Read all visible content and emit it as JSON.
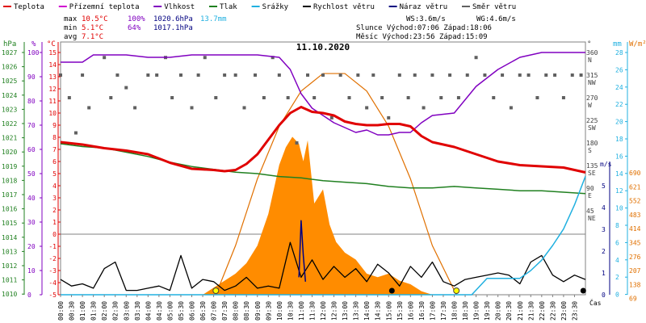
{
  "chart_data": {
    "type": "line",
    "title": "11.10.2020",
    "legend": [
      {
        "label": "Teplota",
        "color": "#e00000"
      },
      {
        "label": "Přízemní teplota",
        "color": "#d000d0"
      },
      {
        "label": "Vlhkost",
        "color": "#8000c0"
      },
      {
        "label": "Tlak",
        "color": "#208020"
      },
      {
        "label": "Srážky",
        "color": "#20b0e0"
      },
      {
        "label": "Rychlost větru",
        "color": "#000000"
      },
      {
        "label": "Náraz větru",
        "color": "#000080"
      },
      {
        "label": "Směr větru",
        "color": "#606060"
      }
    ],
    "stats": {
      "rows": [
        {
          "label": "max",
          "temp": "10.5°C",
          "hum": "100%",
          "press": "1020.6hPa",
          "rain": "13.7mm"
        },
        {
          "label": "min",
          "temp": "5.1°C",
          "hum": "64%",
          "press": "1017.1hPa",
          "rain": ""
        },
        {
          "label": "avg",
          "temp": "7.1°C",
          "hum": "",
          "press": "",
          "rain": ""
        }
      ],
      "ws": "WS:3.6m/s",
      "wg": "WG:4.6m/s",
      "sun": "Slunce Východ:07:06  Západ:18:06",
      "moon": "Měsíc  Východ:23:56  Západ:15:09"
    },
    "axes": {
      "hpa": {
        "label": "hPa",
        "ticks": [
          "1027",
          "1026",
          "1025",
          "1024",
          "1023",
          "1022",
          "1021",
          "1020",
          "1019",
          "1018",
          "1017",
          "1016",
          "1015",
          "1014",
          "1013",
          "1012",
          "1011",
          "1010"
        ]
      },
      "pct": {
        "label": "%",
        "ticks": [
          "100",
          "90",
          "80",
          "70",
          "60",
          "50",
          "40",
          "30",
          "20",
          "10",
          "0"
        ]
      },
      "degc": {
        "label": "°C",
        "ticks": [
          "15",
          "14",
          "13",
          "12",
          "11",
          "10",
          "9",
          "8",
          "7",
          "6",
          "5",
          "4",
          "3",
          "2",
          "1",
          "0",
          "-1",
          "-2",
          "-3",
          "-4",
          "-5"
        ]
      },
      "dir": {
        "label": "°",
        "ticks": [
          "360",
          "315",
          "270",
          "225",
          "180",
          "135",
          "90",
          "45"
        ],
        "names": [
          "N",
          "NW",
          "W",
          "SW",
          "S",
          "SE",
          "E",
          "NE"
        ]
      },
      "ms": {
        "label": "m/s",
        "ticks": [
          "5",
          "4",
          "3",
          "2",
          "1",
          "0"
        ]
      },
      "mm": {
        "label": "mm",
        "ticks": [
          "28",
          "26",
          "24",
          "22",
          "20",
          "18",
          "16",
          "14",
          "12",
          "10",
          "8",
          "6",
          "4",
          "2",
          "0"
        ]
      },
      "wm2": {
        "label": "W/m²",
        "ticks": [
          "690",
          "621",
          "552",
          "483",
          "414",
          "345",
          "276",
          "207",
          "138",
          "69"
        ]
      },
      "x_label": "Čas",
      "x_ticks": [
        "00:00",
        "00:30",
        "01:00",
        "01:30",
        "02:00",
        "02:30",
        "03:00",
        "03:30",
        "04:00",
        "04:30",
        "05:00",
        "05:30",
        "06:00",
        "06:30",
        "07:00",
        "07:30",
        "08:00",
        "08:30",
        "09:00",
        "09:30",
        "10:00",
        "10:30",
        "11:00",
        "11:30",
        "12:00",
        "12:30",
        "13:00",
        "13:30",
        "14:00",
        "14:30",
        "15:00",
        "15:30",
        "16:00",
        "16:30",
        "17:00",
        "17:30",
        "18:00",
        "18:30",
        "19:00",
        "19:30",
        "20:00",
        "20:30",
        "21:00",
        "21:30",
        "22:00",
        "22:30",
        "23:00",
        "23:30"
      ]
    },
    "series": {
      "temperature": {
        "unit": "°C",
        "x": [
          0,
          1,
          2,
          3,
          4,
          5,
          6,
          7,
          7.5,
          8,
          8.5,
          9,
          9.5,
          10,
          10.5,
          11,
          11.5,
          12,
          12.5,
          13,
          13.5,
          14,
          14.5,
          15,
          15.5,
          16,
          16.5,
          17,
          17.5,
          18,
          19,
          20,
          21,
          22,
          23,
          24
        ],
        "y": [
          7.6,
          7.4,
          7.1,
          6.9,
          6.6,
          5.9,
          5.4,
          5.3,
          5.2,
          5.3,
          5.8,
          6.6,
          7.8,
          9.0,
          10.0,
          10.5,
          10.1,
          10.0,
          9.8,
          9.3,
          9.1,
          9.0,
          9.0,
          9.1,
          9.1,
          8.9,
          8.1,
          7.6,
          7.4,
          7.2,
          6.6,
          6.0,
          5.7,
          5.6,
          5.5,
          5.1
        ]
      },
      "humidity": {
        "unit": "%",
        "x": [
          0,
          1,
          1.5,
          2,
          3,
          4,
          5,
          6,
          7,
          8,
          9,
          10,
          10.5,
          11,
          11.5,
          12,
          12.5,
          13,
          13.5,
          14,
          14.5,
          15,
          15.5,
          16,
          16.5,
          17,
          18,
          19,
          20,
          21,
          22,
          23,
          24
        ],
        "y": [
          96,
          96,
          99,
          99,
          99,
          98,
          98,
          99,
          99,
          99,
          99,
          98,
          93,
          83,
          77,
          74,
          71,
          69,
          67,
          68,
          66,
          66,
          67,
          67,
          71,
          74,
          75,
          86,
          93,
          98,
          100,
          100,
          100
        ]
      },
      "pressure": {
        "unit": "hPa",
        "x": [
          0,
          1,
          2,
          3,
          4,
          5,
          6,
          7,
          8,
          9,
          10,
          11,
          12,
          13,
          14,
          15,
          16,
          17,
          18,
          19,
          20,
          21,
          22,
          23,
          24
        ],
        "y": [
          1020.6,
          1020.4,
          1020.3,
          1020.0,
          1019.7,
          1019.3,
          1019.0,
          1018.8,
          1018.6,
          1018.5,
          1018.3,
          1018.2,
          1018.0,
          1017.9,
          1017.8,
          1017.6,
          1017.5,
          1017.5,
          1017.6,
          1017.5,
          1017.4,
          1017.3,
          1017.3,
          1017.2,
          1017.1
        ]
      },
      "rain": {
        "unit": "mm",
        "x": [
          0,
          18.8,
          19.5,
          20.5,
          21,
          21.5,
          22,
          22.5,
          23,
          23.5,
          24
        ],
        "y": [
          0,
          0,
          1.9,
          1.9,
          1.9,
          2.8,
          4.0,
          5.7,
          7.6,
          10.4,
          13.7
        ]
      },
      "wind_speed": {
        "unit": "m/s",
        "x": [
          0,
          0.5,
          1,
          1.5,
          2,
          2.5,
          3,
          3.5,
          4,
          4.5,
          5,
          5.5,
          6,
          6.5,
          7,
          7.5,
          8,
          8.5,
          9,
          9.5,
          10,
          10.5,
          11,
          11.5,
          12,
          12.5,
          13,
          13.5,
          14,
          14.5,
          15,
          15.5,
          16,
          16.5,
          17,
          17.5,
          18,
          18.5,
          19,
          19.5,
          20,
          20.5,
          21,
          21.5,
          22,
          22.5,
          23,
          23.5,
          24
        ],
        "y": [
          0.7,
          0.4,
          0.5,
          0.3,
          1.2,
          1.5,
          0.2,
          0.2,
          0.3,
          0.4,
          0.2,
          1.8,
          0.3,
          0.7,
          0.6,
          0.2,
          0.4,
          0.8,
          0.3,
          0.4,
          0.3,
          2.4,
          0.8,
          1.6,
          0.7,
          1.3,
          0.8,
          1.2,
          0.6,
          1.4,
          1.0,
          0.4,
          1.3,
          0.8,
          1.5,
          0.6,
          0.4,
          0.7,
          0.8,
          0.9,
          1.0,
          0.9,
          0.5,
          1.5,
          1.8,
          0.9,
          0.6,
          0.9,
          0.7
        ]
      },
      "wind_gust": {
        "unit": "m/s",
        "x": [
          10.9,
          11.0,
          11.1,
          11.2
        ],
        "y": [
          0.8,
          3.4,
          1.8,
          0.6
        ]
      },
      "wind_dir": {
        "unit": "°",
        "x": [
          0,
          0.4,
          0.7,
          1.0,
          1.3,
          2.0,
          2.3,
          2.6,
          3.0,
          3.4,
          4.0,
          4.4,
          4.8,
          5.1,
          5.5,
          6.0,
          6.3,
          6.6,
          7.1,
          7.5,
          8.0,
          8.4,
          8.9,
          9.3,
          9.7,
          10.0,
          10.4,
          10.8,
          11.3,
          11.6,
          12.0,
          12.4,
          12.8,
          13.2,
          13.6,
          14.0,
          14.3,
          14.7,
          15.0,
          15.5,
          15.9,
          16.2,
          16.6,
          17.0,
          17.4,
          17.8,
          18.2,
          18.6,
          19.0,
          19.4,
          19.8,
          20.2,
          20.6,
          21.0,
          21.4,
          21.8,
          22.2,
          22.6,
          23.0,
          23.4,
          23.8
        ],
        "y": [
          315,
          270,
          200,
          315,
          250,
          350,
          270,
          315,
          290,
          250,
          315,
          315,
          350,
          270,
          315,
          250,
          315,
          350,
          270,
          315,
          315,
          250,
          315,
          270,
          350,
          315,
          270,
          180,
          315,
          270,
          315,
          230,
          315,
          270,
          315,
          250,
          315,
          270,
          230,
          315,
          270,
          315,
          250,
          315,
          270,
          315,
          270,
          315,
          350,
          315,
          270,
          315,
          250,
          315,
          315,
          270,
          315,
          315,
          270,
          315,
          315
        ]
      },
      "solar_radiation": {
        "unit": "W/m²",
        "x": [
          6.5,
          7,
          7.5,
          8,
          8.5,
          9,
          9.5,
          10,
          10.3,
          10.6,
          10.9,
          11.1,
          11.3,
          11.6,
          12,
          12.3,
          12.6,
          13,
          13.5,
          14,
          14.5,
          15,
          15.5,
          16,
          16.5,
          17
        ],
        "y": [
          0,
          20,
          40,
          60,
          90,
          140,
          230,
          370,
          420,
          450,
          430,
          380,
          440,
          260,
          300,
          200,
          150,
          120,
          100,
          60,
          50,
          60,
          40,
          30,
          10,
          0
        ]
      },
      "solar_theoretical": {
        "unit": "W/m²",
        "x": [
          7.1,
          8,
          9,
          10,
          11,
          12,
          13,
          14,
          15,
          16,
          17,
          18.1
        ],
        "y": [
          0,
          140,
          330,
          480,
          580,
          630,
          630,
          580,
          480,
          330,
          140,
          0
        ]
      }
    },
    "markers": [
      {
        "type": "sunrise",
        "x": 7.1
      },
      {
        "type": "sunset",
        "x": 18.1
      },
      {
        "type": "moonset",
        "x": 15.15
      },
      {
        "type": "moonrise",
        "x": 23.9
      }
    ]
  }
}
